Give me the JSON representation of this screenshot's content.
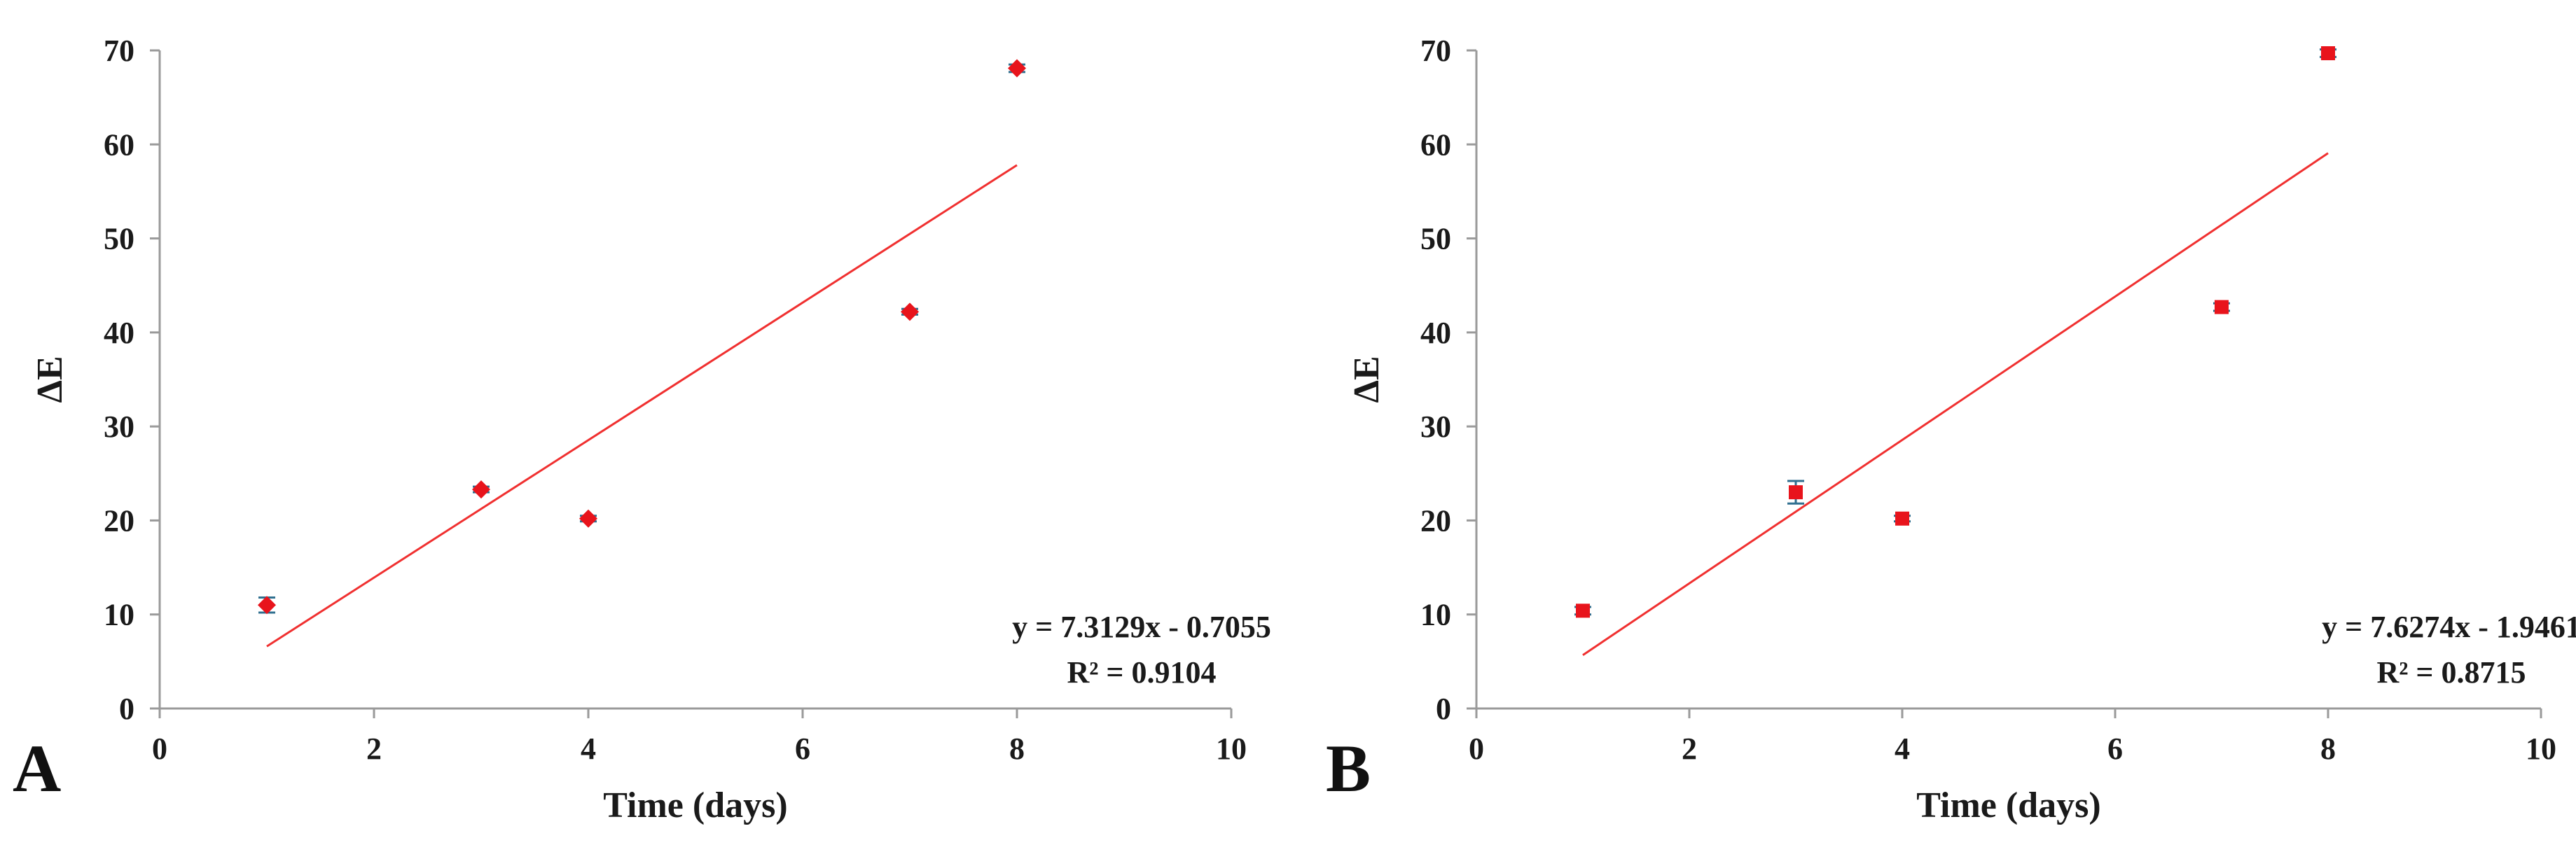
{
  "chart_data": [
    {
      "type": "scatter",
      "panel_label": "A",
      "xlabel": "Time (days)",
      "ylabel": "ΔE",
      "xlim": [
        0,
        10
      ],
      "ylim": [
        0,
        70
      ],
      "xticks": [
        0,
        2,
        4,
        6,
        8,
        10
      ],
      "yticks": [
        0,
        10,
        20,
        30,
        40,
        50,
        60,
        70
      ],
      "grid": false,
      "marker": "diamond",
      "series": [
        {
          "x": [
            1,
            3,
            4,
            7,
            8
          ],
          "y": [
            11,
            23.3,
            20.2,
            42.2,
            68.1
          ],
          "error": [
            0.8,
            0.3,
            0.3,
            0.3,
            0.4
          ]
        }
      ],
      "trendline": {
        "slope": 7.3129,
        "intercept": -0.7055,
        "x_range": [
          1,
          8
        ],
        "equation": "y = 7.3129x - 0.7055",
        "r_squared": "R² = 0.9104"
      },
      "colors": {
        "points": "#e8141c",
        "trendline": "#f03030",
        "error_bars": "#2f6f8f"
      }
    },
    {
      "type": "scatter",
      "panel_label": "B",
      "xlabel": "Time (days)",
      "ylabel": "ΔE",
      "xlim": [
        0,
        10
      ],
      "ylim": [
        0,
        70
      ],
      "xticks": [
        0,
        2,
        4,
        6,
        8,
        10
      ],
      "yticks": [
        0,
        10,
        20,
        30,
        40,
        50,
        60,
        70
      ],
      "grid": false,
      "marker": "square",
      "series": [
        {
          "x": [
            1,
            3,
            4,
            7,
            8
          ],
          "y": [
            10.4,
            23,
            20.2,
            42.7,
            69.7
          ],
          "error": [
            0.4,
            1.2,
            0.3,
            0.4,
            0.4
          ]
        }
      ],
      "trendline": {
        "slope": 7.6274,
        "intercept": -1.9461,
        "x_range": [
          1,
          8
        ],
        "equation": "y = 7.6274x - 1.9461",
        "r_squared": "R² = 0.8715"
      },
      "colors": {
        "points": "#e8141c",
        "trendline": "#f03030",
        "error_bars": "#2f6f8f"
      }
    }
  ]
}
